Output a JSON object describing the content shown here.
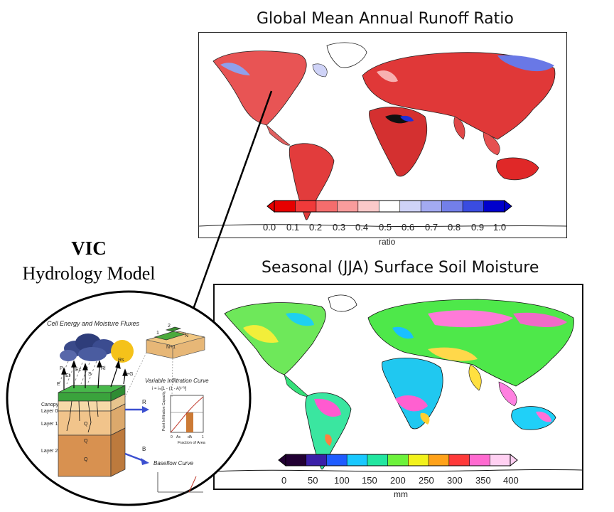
{
  "runoff_map": {
    "title": "Global Mean Annual Runoff Ratio",
    "colorbar_ticks": [
      "0.0",
      "0.1",
      "0.2",
      "0.3",
      "0.4",
      "0.5",
      "0.6",
      "0.7",
      "0.8",
      "0.9",
      "1.0"
    ],
    "colorbar_unit": "ratio",
    "colors": [
      "#e60000",
      "#f03a3a",
      "#f56d6d",
      "#f99c9c",
      "#fbc9c9",
      "#ffffff",
      "#cfd3f7",
      "#a3aaf1",
      "#737fe9",
      "#3a4ce0",
      "#0000cc"
    ]
  },
  "soil_map": {
    "title": "Seasonal (JJA) Surface Soil Moisture",
    "colorbar_ticks": [
      "0",
      "50",
      "100",
      "150",
      "200",
      "250",
      "300",
      "350",
      "400"
    ],
    "colorbar_unit": "mm",
    "colors": [
      "#220033",
      "#3a1fa8",
      "#1f5cff",
      "#19c8ff",
      "#22e6a0",
      "#6df23c",
      "#f2f21c",
      "#ffa21a",
      "#ff3a3a",
      "#ff6ad0",
      "#ffd0f2"
    ]
  },
  "vic": {
    "title": "VIC",
    "subtitle": "Hydrology Model",
    "diagram": {
      "header": "Cell Energy and Moisture Fluxes",
      "flux_labels": [
        "P",
        "E",
        "Et",
        "Ec",
        "S",
        "Rl",
        "Rs",
        "+G"
      ],
      "layer_labels": [
        "Canopy",
        "Layer 0",
        "Layer 1",
        "Layer 2"
      ],
      "q_labels": [
        "Q",
        "Q",
        "Q"
      ],
      "arrow_labels": [
        "R",
        "B"
      ],
      "grid_labels": [
        "1",
        "2",
        "N",
        "N+1"
      ],
      "infiltration": {
        "title": "Variable Infiltration Curve",
        "formula": "i = iₘ[1 - (1 - A)¹ᐟᵇ]",
        "ylabel": "Point Infiltration Capacity, i",
        "xlabel": "Fraction of Area",
        "x_ticks": [
          "0",
          "As",
          "dA",
          "1"
        ]
      },
      "baseflow": {
        "title": "Baseflow Curve"
      }
    }
  }
}
